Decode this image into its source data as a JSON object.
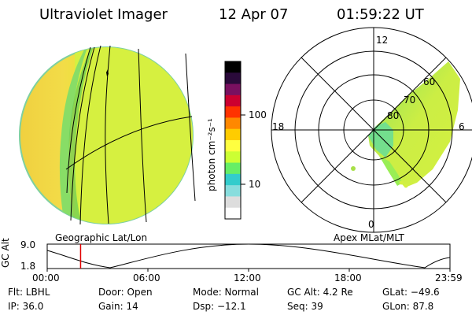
{
  "header": {
    "title": "Ultraviolet Imager",
    "date": "12 Apr 07",
    "time": "01:59:22 UT"
  },
  "colorbar": {
    "unit_label": "photon cm⁻²s⁻¹",
    "ticks": [
      "100",
      "10"
    ],
    "scale": "log",
    "colors": [
      "#000000",
      "#2a0a3a",
      "#7a1060",
      "#cc0030",
      "#ff3300",
      "#ff8800",
      "#ffcc00",
      "#ffff40",
      "#ccff33",
      "#66ee66",
      "#33cccc",
      "#88dddd",
      "#dddddd",
      "#ffffff"
    ]
  },
  "polar_plot": {
    "mlt_labels": [
      "12",
      "18",
      "6",
      "0"
    ],
    "lat_labels": [
      "60",
      "70",
      "80"
    ]
  },
  "panel_labels": {
    "left": "Geographic Lat/Lon",
    "right": "Apex MLat/MLT"
  },
  "timeline": {
    "ylabel": "GC Alt",
    "y_ticks": [
      "9.0",
      "1.8"
    ],
    "x_ticks": [
      "00:00",
      "06:00",
      "12:00",
      "18:00",
      "23:59"
    ],
    "current_time_hours": 1.99
  },
  "info": {
    "filter": "Flt: LBHL",
    "ip": "IP: 36.0",
    "door": "Door: Open",
    "gain": "Gain: 14",
    "mode": "Mode: Normal",
    "dsp": "Dsp:  −12.1",
    "gc_alt": "GC Alt: 4.2 Re",
    "seq": "Seq: 39",
    "glat": "GLat: −49.6",
    "glon": "GLon:  87.8"
  }
}
